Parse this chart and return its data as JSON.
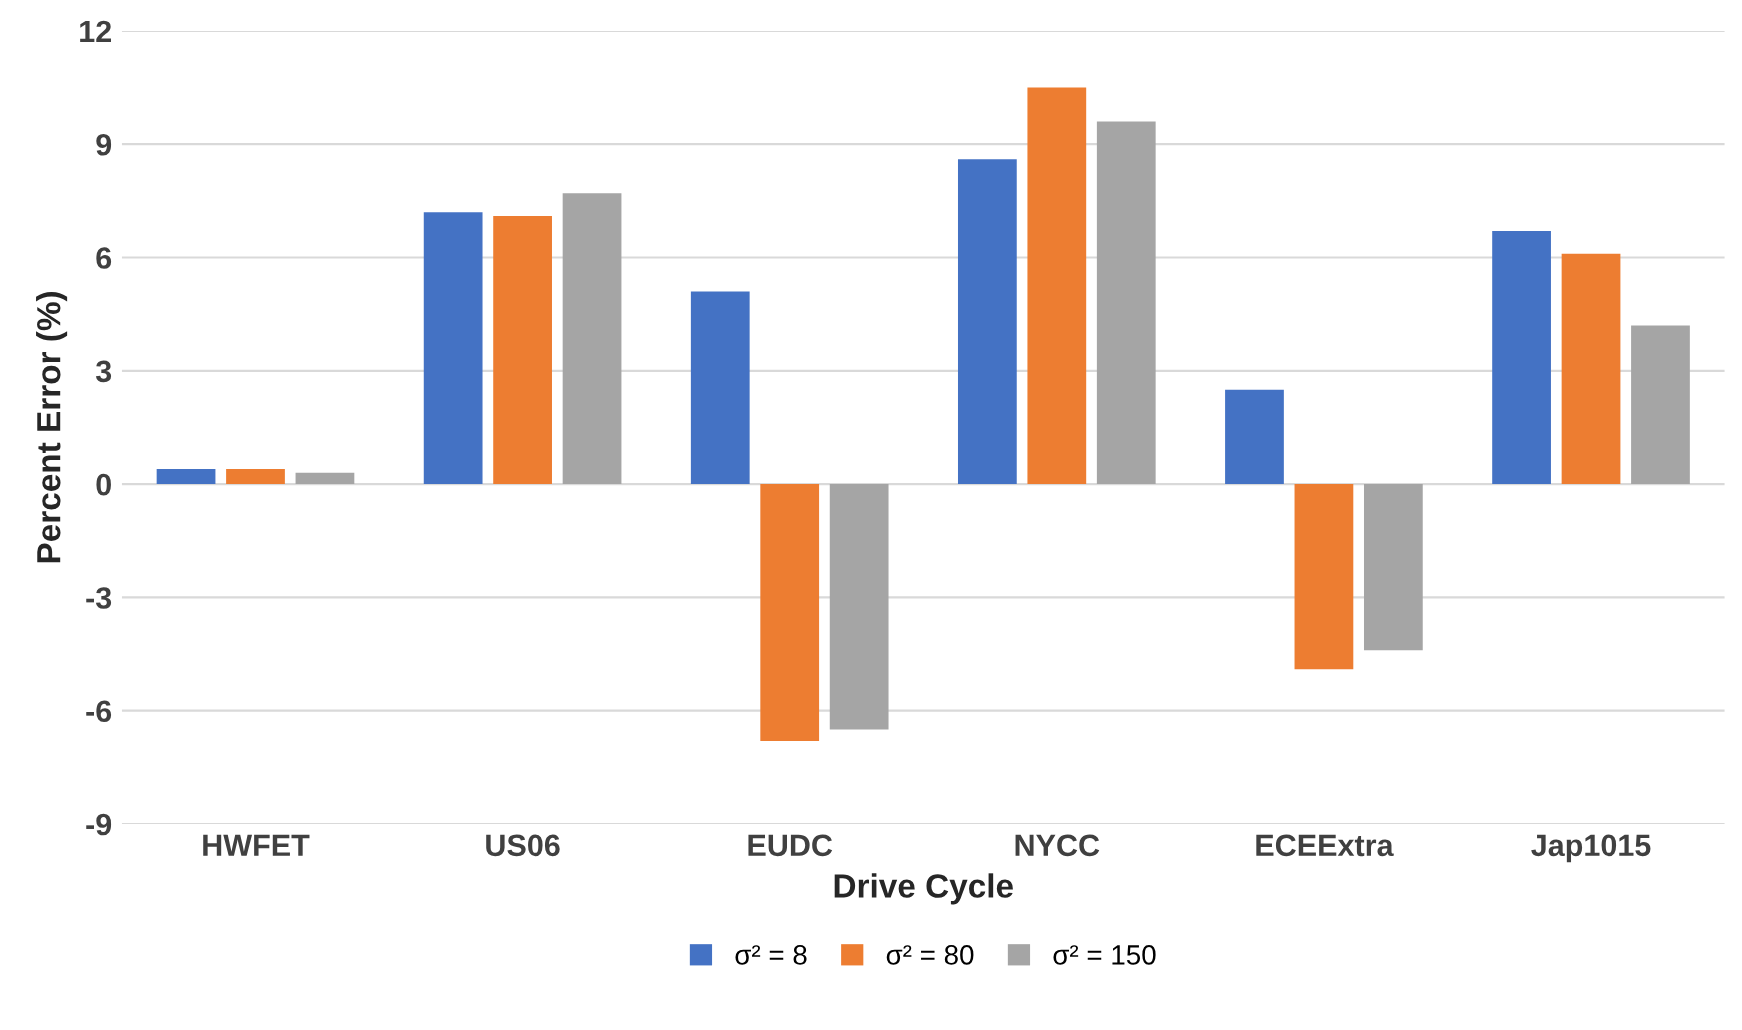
{
  "chart_data": {
    "type": "bar",
    "xlabel": "Drive Cycle",
    "ylabel": "Percent Error (%)",
    "categories": [
      "HWFET",
      "US06",
      "EUDC",
      "NYCC",
      "ECEExtra",
      "Jap1015"
    ],
    "series": [
      {
        "name": "σ² = 8",
        "color": "#4472c4",
        "values": [
          0.4,
          7.2,
          5.1,
          8.6,
          2.5,
          6.7
        ]
      },
      {
        "name": "σ² = 80",
        "color": "#ed7d31",
        "values": [
          0.4,
          7.1,
          -6.8,
          10.5,
          -4.9,
          6.1
        ]
      },
      {
        "name": "σ² = 150",
        "color": "#a5a5a5",
        "values": [
          0.3,
          7.7,
          -6.5,
          9.6,
          -4.4,
          4.2
        ]
      }
    ],
    "ylim": [
      -9,
      12
    ],
    "yticks": [
      -9,
      -6,
      -3,
      0,
      3,
      6,
      9,
      12
    ],
    "grid": "y",
    "legend": "bottom"
  }
}
